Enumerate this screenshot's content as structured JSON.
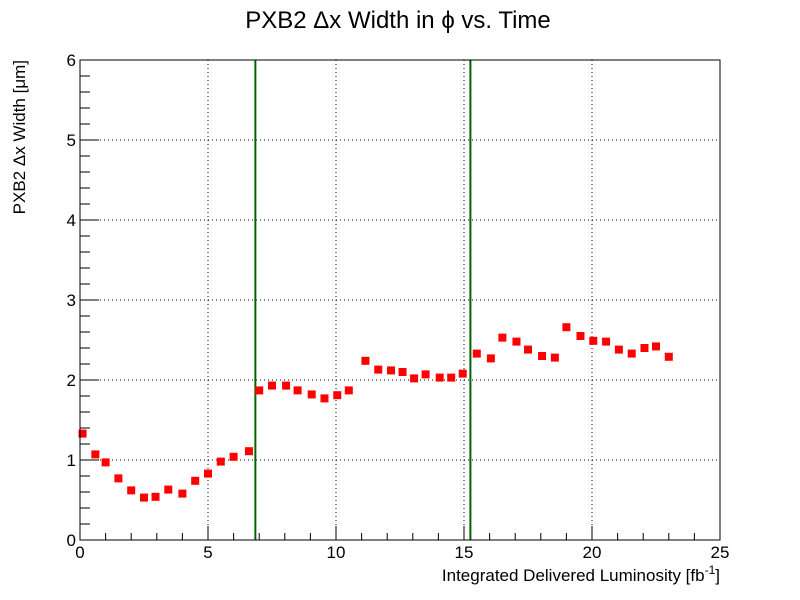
{
  "chart_data": {
    "type": "scatter",
    "title": "PXB2 Δx Width in ϕ vs. Time",
    "xlabel": "Integrated Delivered Luminosity [fb",
    "xlabel_sup": "-1",
    "xlabel_tail": "]",
    "ylabel": "PXB2 Δx Width [μm]",
    "xlim": [
      0,
      25
    ],
    "ylim": [
      0,
      6
    ],
    "grid": true,
    "x_ticks": [
      "0",
      "5",
      "10",
      "15",
      "20",
      "25"
    ],
    "y_ticks": [
      "0",
      "1",
      "2",
      "3",
      "4",
      "5",
      "6"
    ],
    "marker_color": "#ff0000",
    "vlines": [
      {
        "x": 6.85,
        "color": "#006400"
      },
      {
        "x": 15.25,
        "color": "#006400"
      }
    ],
    "series": [
      {
        "x": [
          0.1,
          0.6,
          1.0,
          1.5,
          2.0,
          2.5,
          2.95,
          3.45,
          4.0,
          4.5,
          5.0,
          5.5,
          6.0,
          6.6,
          7.0,
          7.5,
          8.05,
          8.5,
          9.05,
          9.55,
          10.05,
          10.5,
          11.15,
          11.65,
          12.15,
          12.6,
          13.05,
          13.5,
          14.05,
          14.5,
          14.95,
          15.5,
          16.05,
          16.5,
          17.05,
          17.5,
          18.05,
          18.55,
          19.0,
          19.55,
          20.05,
          20.55,
          21.05,
          21.55,
          22.05,
          22.5,
          23.0
        ],
        "y": [
          1.33,
          1.07,
          0.97,
          0.77,
          0.62,
          0.53,
          0.54,
          0.63,
          0.58,
          0.74,
          0.83,
          0.98,
          1.04,
          1.11,
          1.87,
          1.93,
          1.93,
          1.87,
          1.82,
          1.77,
          1.81,
          1.87,
          2.24,
          2.13,
          2.12,
          2.1,
          2.02,
          2.07,
          2.03,
          2.03,
          2.08,
          2.33,
          2.27,
          2.53,
          2.48,
          2.38,
          2.3,
          2.28,
          2.66,
          2.55,
          2.49,
          2.48,
          2.38,
          2.33,
          2.4,
          2.42,
          2.29
        ]
      }
    ]
  }
}
